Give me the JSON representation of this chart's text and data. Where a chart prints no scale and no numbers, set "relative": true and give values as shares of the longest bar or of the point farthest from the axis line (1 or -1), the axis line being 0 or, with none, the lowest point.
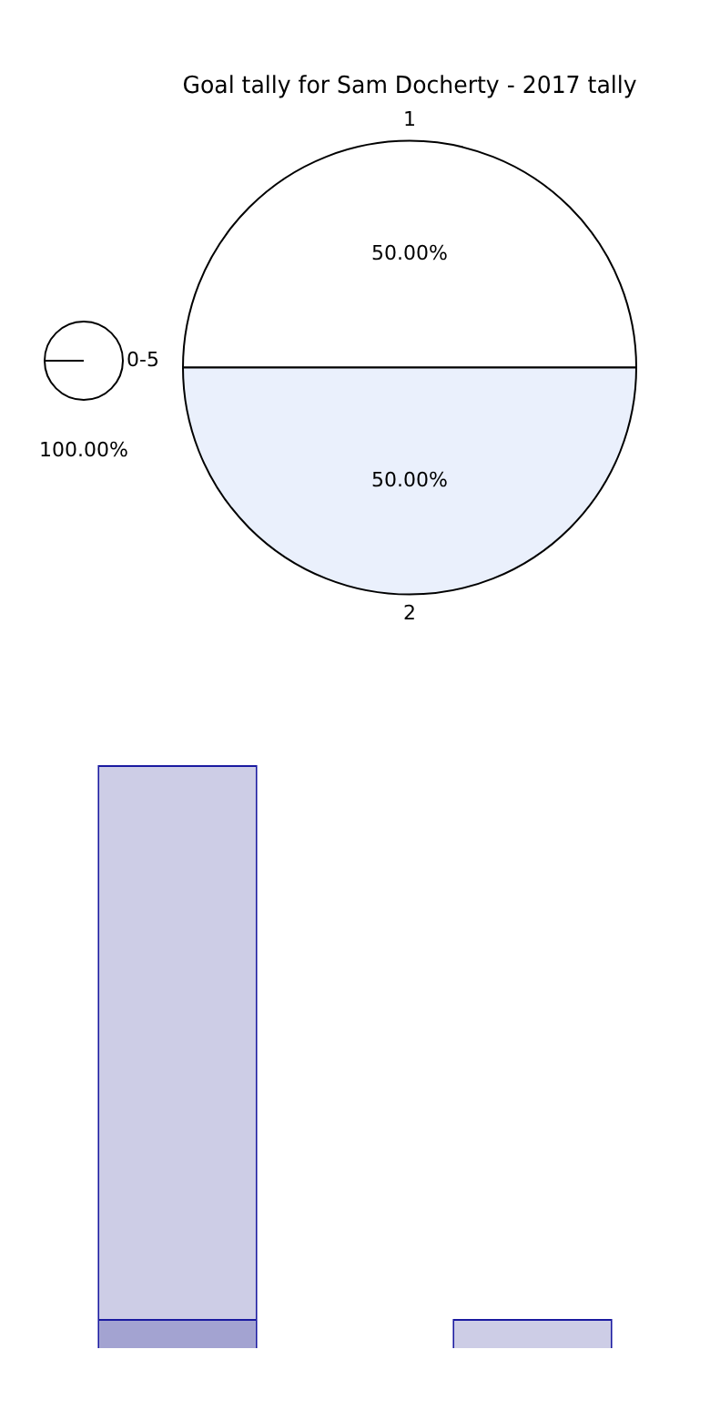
{
  "chart_data": [
    {
      "type": "pie",
      "title": "Goal tally for Sam Docherty - 2017 tally",
      "categories": [
        "1",
        "2"
      ],
      "values": [
        50,
        50
      ],
      "colors": [
        "#ffffff",
        "#eaf0fc"
      ],
      "value_labels": [
        "50.00%",
        "50.00%"
      ]
    },
    {
      "type": "pie",
      "categories": [
        "0-5"
      ],
      "values": [
        100
      ],
      "colors": [
        "#ffffff"
      ],
      "value_labels": [
        "100.00%"
      ]
    },
    {
      "type": "bar",
      "relative": true,
      "stacked": true,
      "categories": [
        null,
        null
      ],
      "series": [
        {
          "color": "#a3a3d1",
          "values": [
            0.05,
            null
          ]
        },
        {
          "color": "#cdcde6",
          "values": [
            0.95,
            0.05
          ]
        }
      ]
    }
  ]
}
